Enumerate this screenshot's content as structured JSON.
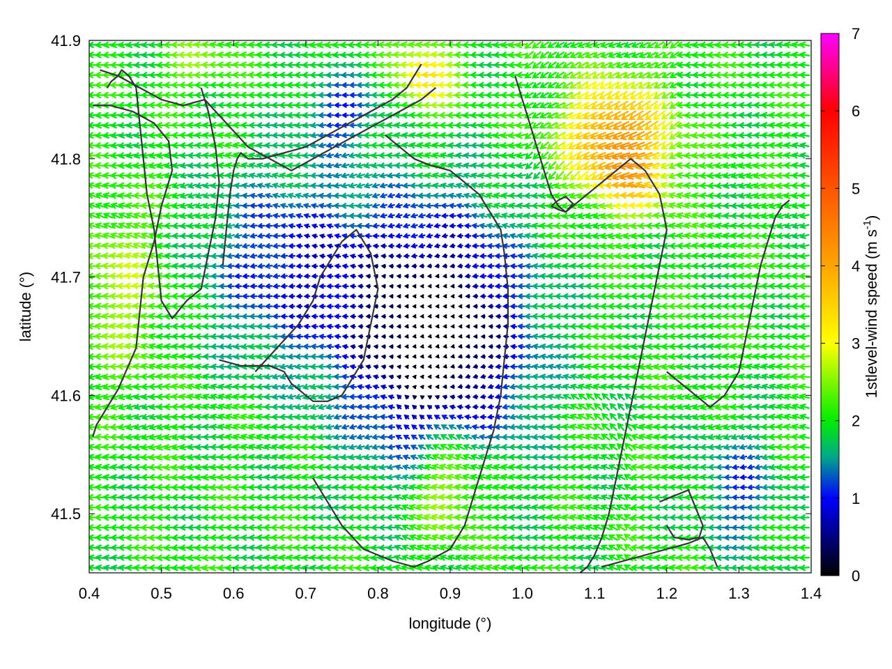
{
  "chart_data": {
    "type": "vector-field",
    "xlabel": "longitude (°)",
    "ylabel": "latitude (°)",
    "xlim": [
      0.4,
      1.4
    ],
    "ylim": [
      41.45,
      41.9
    ],
    "x_ticks": [
      "0.4",
      "0.5",
      "0.6",
      "0.7",
      "0.8",
      "0.9",
      "1.0",
      "1.1",
      "1.2",
      "1.3",
      "1.4"
    ],
    "y_ticks": [
      "41.5",
      "41.6",
      "41.7",
      "41.8",
      "41.9"
    ],
    "grid": true,
    "colorbar": {
      "label": "1stlevel-wind speed (m s",
      "label_exponent": "-1",
      "label_suffix": ")",
      "range": [
        0,
        7
      ],
      "ticks": [
        "0",
        "1",
        "2",
        "3",
        "4",
        "5",
        "6",
        "7"
      ],
      "stops": [
        "#000000",
        "#0000ff",
        "#00aa88",
        "#00ee00",
        "#ffff00",
        "#ffa500",
        "#ff5500",
        "#ff0000",
        "#ff00ff"
      ]
    },
    "field_description": {
      "dominant_direction": "westward (arrows pointing left)",
      "speed_range_ms": [
        0,
        4.5
      ],
      "regions": [
        {
          "area": "central basin lon 0.8-0.95, lat 41.55-41.75",
          "speed_ms": 0.5
        },
        {
          "area": "northeast lon 1.05-1.2, lat 41.78-41.87",
          "speed_ms": 4.0
        },
        {
          "area": "west lon 0.4-0.5, lat 41.62-41.72",
          "speed_ms": 2.6
        },
        {
          "area": "south-central lon 0.85-0.95, lat 41.48-41.58",
          "speed_ms": 2.8
        },
        {
          "area": "east lon 1.2-1.35, lat 41.6-41.75",
          "speed_ms": 1.9
        }
      ]
    },
    "contours": [
      {
        "lon": [
          0.555,
          0.565,
          0.575,
          0.58,
          0.575,
          0.565,
          0.555,
          0.535,
          0.515,
          0.5,
          0.495,
          0.49,
          0.48,
          0.475,
          0.47,
          0.465,
          0.455,
          0.445,
          0.44,
          0.43,
          0.425
        ],
        "lat": [
          41.86,
          41.84,
          41.81,
          41.78,
          41.75,
          41.72,
          41.69,
          41.68,
          41.665,
          41.68,
          41.71,
          41.74,
          41.77,
          41.8,
          41.83,
          41.86,
          41.87,
          41.875,
          41.87,
          41.865,
          41.86
        ]
      },
      {
        "lon": [
          0.415,
          0.44,
          0.47,
          0.5,
          0.53,
          0.56,
          0.59,
          0.62,
          0.65,
          0.68,
          0.71,
          0.74,
          0.77,
          0.8,
          0.83,
          0.86,
          0.88
        ],
        "lat": [
          41.875,
          41.87,
          41.86,
          41.85,
          41.845,
          41.85,
          41.83,
          41.81,
          41.8,
          41.79,
          41.8,
          41.81,
          41.82,
          41.83,
          41.84,
          41.85,
          41.86
        ]
      },
      {
        "lon": [
          0.405,
          0.43,
          0.46,
          0.49,
          0.51,
          0.515,
          0.5,
          0.49,
          0.475,
          0.47,
          0.465,
          0.44,
          0.41,
          0.405
        ],
        "lat": [
          41.845,
          41.845,
          41.84,
          41.83,
          41.815,
          41.79,
          41.76,
          41.73,
          41.7,
          41.67,
          41.64,
          41.605,
          41.575,
          41.565
        ]
      },
      {
        "lon": [
          0.585,
          0.59,
          0.595,
          0.6,
          0.605,
          0.61,
          0.62,
          0.64,
          0.67,
          0.7,
          0.73,
          0.76,
          0.79,
          0.82,
          0.84,
          0.85,
          0.86
        ],
        "lat": [
          41.71,
          41.74,
          41.77,
          41.79,
          41.8,
          41.805,
          41.8,
          41.8,
          41.805,
          41.81,
          41.82,
          41.83,
          41.84,
          41.85,
          41.86,
          41.87,
          41.88
        ]
      },
      {
        "lon": [
          0.63,
          0.66,
          0.69,
          0.71,
          0.72,
          0.74,
          0.75,
          0.77,
          0.79,
          0.8,
          0.79,
          0.78,
          0.76,
          0.75,
          0.73,
          0.71,
          0.7,
          0.68,
          0.67,
          0.65,
          0.63,
          0.61,
          0.58
        ],
        "lat": [
          41.62,
          41.64,
          41.66,
          41.68,
          41.7,
          41.72,
          41.73,
          41.74,
          41.72,
          41.69,
          41.66,
          41.63,
          41.61,
          41.6,
          41.595,
          41.595,
          41.6,
          41.61,
          41.62,
          41.625,
          41.625,
          41.625,
          41.63
        ]
      },
      {
        "lon": [
          0.71,
          0.73,
          0.75,
          0.78,
          0.82,
          0.85,
          0.87,
          0.9,
          0.92,
          0.93,
          0.94,
          0.95,
          0.96,
          0.97,
          0.975,
          0.98,
          0.98,
          0.975,
          0.97,
          0.96,
          0.95,
          0.94,
          0.92,
          0.9,
          0.87,
          0.85,
          0.83,
          0.82,
          0.81
        ],
        "lat": [
          41.53,
          41.51,
          41.49,
          41.47,
          41.46,
          41.455,
          41.46,
          41.47,
          41.49,
          41.51,
          41.53,
          41.55,
          41.57,
          41.6,
          41.63,
          41.66,
          41.69,
          41.72,
          41.74,
          41.75,
          41.76,
          41.77,
          41.78,
          41.79,
          41.795,
          41.8,
          41.81,
          41.815,
          41.82
        ]
      },
      {
        "lon": [
          0.99,
          1.0,
          1.01,
          1.02,
          1.03,
          1.04,
          1.05,
          1.06,
          1.07,
          1.09,
          1.11,
          1.13,
          1.15,
          1.17,
          1.19,
          1.2,
          1.19,
          1.18,
          1.17,
          1.16,
          1.15,
          1.14,
          1.13,
          1.12,
          1.11,
          1.1,
          1.09,
          1.08
        ],
        "lat": [
          41.87,
          41.85,
          41.83,
          41.81,
          41.79,
          41.77,
          41.76,
          41.755,
          41.76,
          41.77,
          41.78,
          41.79,
          41.8,
          41.79,
          41.77,
          41.74,
          41.71,
          41.68,
          41.65,
          41.62,
          41.59,
          41.56,
          41.53,
          41.5,
          41.48,
          41.465,
          41.455,
          41.45
        ]
      },
      {
        "lon": [
          1.2,
          1.22,
          1.24,
          1.26,
          1.28,
          1.3,
          1.31,
          1.32,
          1.33,
          1.34,
          1.35,
          1.36,
          1.37
        ],
        "lat": [
          41.62,
          41.61,
          41.6,
          41.59,
          41.6,
          41.62,
          41.65,
          41.68,
          41.71,
          41.73,
          41.75,
          41.76,
          41.765
        ]
      },
      {
        "lon": [
          1.04,
          1.05,
          1.06,
          1.07,
          1.06,
          1.05,
          1.04
        ],
        "lat": [
          41.76,
          41.765,
          41.768,
          41.762,
          41.755,
          41.757,
          41.76
        ]
      },
      {
        "lon": [
          1.19,
          1.21,
          1.23,
          1.24,
          1.25,
          1.245,
          1.23,
          1.21,
          1.2
        ],
        "lat": [
          41.51,
          41.515,
          41.52,
          41.505,
          41.49,
          41.48,
          41.478,
          41.48,
          41.49
        ]
      },
      {
        "lon": [
          1.11,
          1.14,
          1.17,
          1.2,
          1.23,
          1.25,
          1.26,
          1.27
        ],
        "lat": [
          41.455,
          41.46,
          41.465,
          41.47,
          41.475,
          41.48,
          41.47,
          41.455
        ]
      }
    ]
  }
}
